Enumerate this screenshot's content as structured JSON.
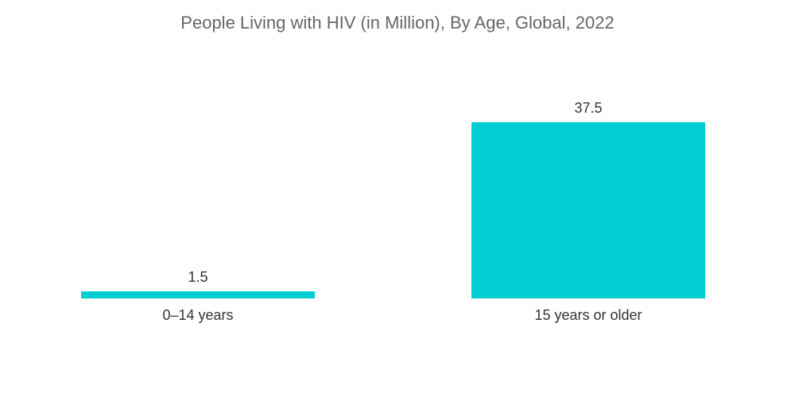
{
  "chart_data": {
    "type": "bar",
    "title": "People Living with HIV (in Million), By Age, Global, 2022",
    "categories": [
      "0–14 years",
      "15 years or older"
    ],
    "values": [
      1.5,
      37.5
    ],
    "data_labels": [
      "1.5",
      "37.5"
    ],
    "xlabel": "",
    "ylabel": "",
    "ylim": [
      0,
      37.5
    ],
    "grid": false,
    "legend": "none",
    "bar_color": "#00CED1"
  }
}
